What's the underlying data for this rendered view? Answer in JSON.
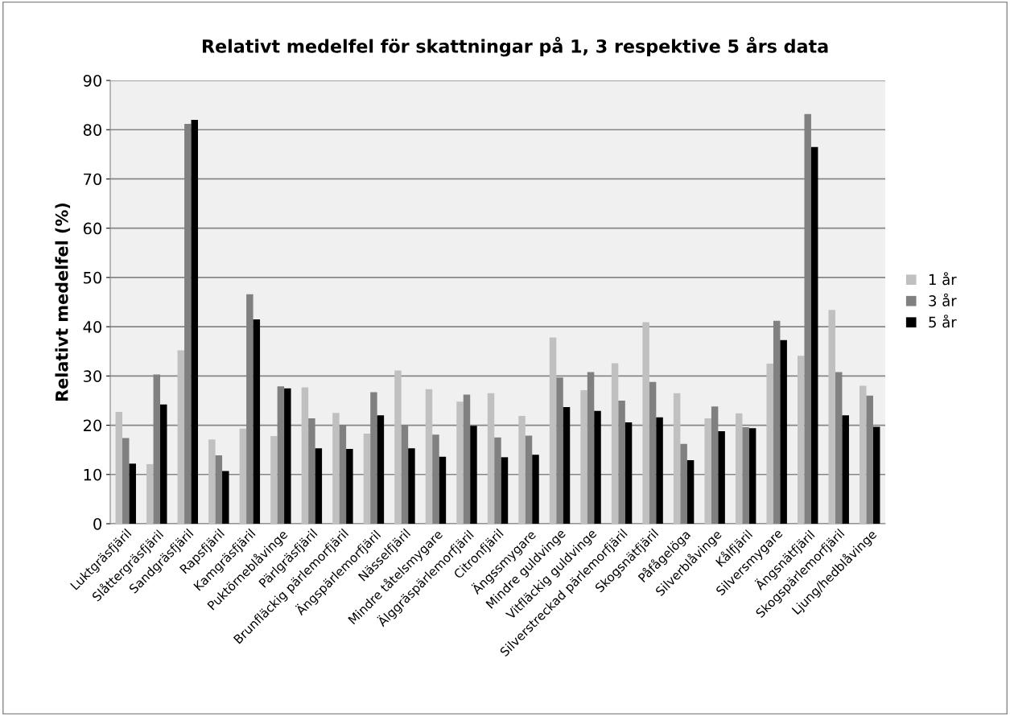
{
  "chart_data": {
    "type": "bar",
    "title": "Relativt medelfel för skattningar på 1, 3 respektive 5 års data",
    "ylabel": "Relativt medelfel (%)",
    "categories": [
      "Luktgräsfjäril",
      "Slåttergräsfjäril",
      "Sandgräsfjäril",
      "Rapsfjäril",
      "Kamgräsfjäril",
      "Puktörneblåvinge",
      "Pärlgräsfjäril",
      "Brunfläckig pärlemorfjäril",
      "Ängspärlemorfjäril",
      "Nässelfjäril",
      "Mindre tåtelsmygare",
      "Älggräspärlemorfjäril",
      "Citronfjäril",
      "Ängssmygare",
      "Mindre guldvinge",
      "Vitfläckig guldvinge",
      "Silverstreckad pärlemorfjäril",
      "Skogsnätfjäril",
      "Påfågelöga",
      "Silverblåvinge",
      "Kålfjäril",
      "Silversmygare",
      "Ängsnätfjäril",
      "Skogspärlemorfjäril",
      "Ljung/hedblåvinge"
    ],
    "series": [
      {
        "name": "1 år",
        "color": "#c0c0c0",
        "values": [
          22.7,
          12.1,
          35.2,
          17.1,
          19.3,
          17.8,
          27.7,
          22.5,
          18.3,
          31.1,
          27.3,
          24.8,
          26.5,
          21.9,
          37.8,
          27.1,
          32.6,
          40.9,
          26.5,
          21.4,
          22.4,
          32.5,
          34.1,
          43.4,
          28.0
        ]
      },
      {
        "name": "3 år",
        "color": "#808080",
        "values": [
          17.4,
          30.3,
          81.2,
          13.9,
          46.6,
          27.9,
          21.4,
          20.1,
          26.7,
          20.1,
          18.1,
          26.2,
          17.5,
          17.9,
          29.7,
          30.8,
          25.0,
          28.8,
          16.2,
          23.8,
          19.6,
          41.2,
          83.2,
          30.8,
          26.0
        ]
      },
      {
        "name": "5 år",
        "color": "#000000",
        "values": [
          12.2,
          24.2,
          82.0,
          10.7,
          41.5,
          27.5,
          15.3,
          15.2,
          22.0,
          15.3,
          13.6,
          19.9,
          13.5,
          14.0,
          23.7,
          22.9,
          20.6,
          21.6,
          12.9,
          18.8,
          19.4,
          37.3,
          76.5,
          22.0,
          19.7
        ]
      }
    ],
    "ylim": [
      0,
      90
    ],
    "yticks": [
      0,
      10,
      20,
      30,
      40,
      50,
      60,
      70,
      80,
      90
    ],
    "grid": "y",
    "legend": "right"
  }
}
